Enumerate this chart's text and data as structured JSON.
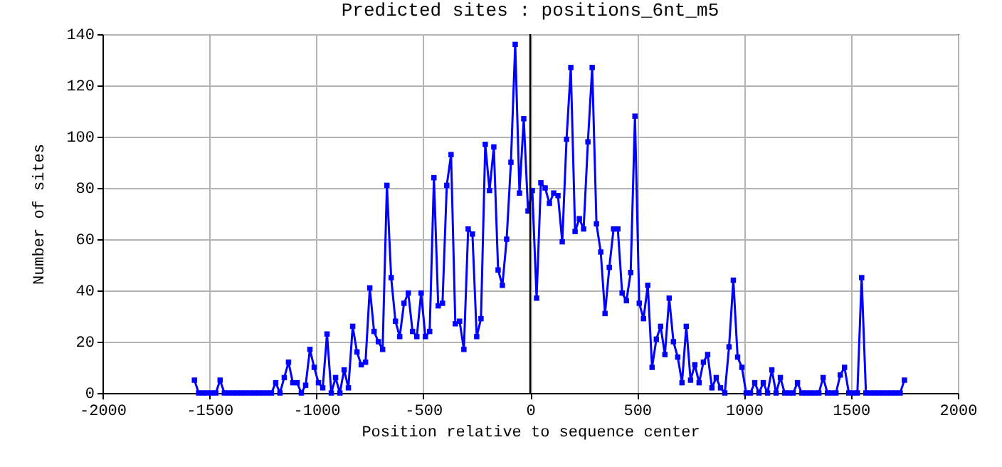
{
  "chart_data": {
    "type": "line",
    "title": "Predicted sites : positions_6nt_m5",
    "xlabel": "Position relative to sequence center",
    "ylabel": "Number of sites",
    "x": [
      -1570,
      -1550,
      -1530,
      -1510,
      -1490,
      -1470,
      -1450,
      -1430,
      -1410,
      -1390,
      -1370,
      -1350,
      -1330,
      -1310,
      -1290,
      -1270,
      -1250,
      -1230,
      -1210,
      -1190,
      -1170,
      -1150,
      -1130,
      -1110,
      -1090,
      -1070,
      -1050,
      -1030,
      -1010,
      -990,
      -970,
      -950,
      -930,
      -910,
      -890,
      -870,
      -850,
      -830,
      -810,
      -790,
      -770,
      -750,
      -730,
      -710,
      -690,
      -670,
      -650,
      -630,
      -610,
      -590,
      -570,
      -550,
      -530,
      -510,
      -490,
      -470,
      -450,
      -430,
      -410,
      -390,
      -370,
      -350,
      -330,
      -310,
      -290,
      -270,
      -250,
      -230,
      -210,
      -190,
      -170,
      -150,
      -130,
      -110,
      -90,
      -70,
      -50,
      -30,
      -10,
      10,
      30,
      50,
      70,
      90,
      110,
      130,
      150,
      170,
      190,
      210,
      230,
      250,
      270,
      290,
      310,
      330,
      350,
      370,
      390,
      410,
      430,
      450,
      470,
      490,
      510,
      530,
      550,
      570,
      590,
      610,
      630,
      650,
      670,
      690,
      710,
      730,
      750,
      770,
      790,
      810,
      830,
      850,
      870,
      890,
      910,
      930,
      950,
      970,
      990,
      1010,
      1030,
      1050,
      1070,
      1090,
      1110,
      1130,
      1150,
      1170,
      1190,
      1210,
      1230,
      1250,
      1270,
      1290,
      1310,
      1330,
      1350,
      1370,
      1390,
      1410,
      1430,
      1450,
      1470,
      1490,
      1510,
      1530,
      1550,
      1570,
      1590,
      1610,
      1630,
      1650,
      1670,
      1690,
      1710,
      1730,
      1750
    ],
    "series": [
      {
        "color": "#0000ff",
        "values": [
          5,
          0,
          0,
          0,
          0,
          0,
          5,
          0,
          0,
          0,
          0,
          0,
          0,
          0,
          0,
          0,
          0,
          0,
          0,
          4,
          0,
          6,
          12,
          4,
          4,
          0,
          3,
          17,
          10,
          4,
          2,
          23,
          0,
          6,
          0,
          9,
          2,
          26,
          16,
          11,
          12,
          41,
          24,
          20,
          17,
          81,
          45,
          28,
          22,
          35,
          39,
          24,
          22,
          39,
          22,
          24,
          84,
          34,
          35,
          81,
          93,
          27,
          28,
          17,
          64,
          62,
          22,
          29,
          97,
          79,
          96,
          48,
          42,
          60,
          90,
          136,
          78,
          107,
          71,
          79,
          37,
          82,
          80,
          74,
          78,
          77,
          59,
          99,
          127,
          63,
          68,
          64,
          98,
          127,
          66,
          55,
          31,
          49,
          64,
          64,
          39,
          36,
          47,
          108,
          35,
          29,
          42,
          10,
          21,
          26,
          15,
          37,
          20,
          14,
          4,
          26,
          5,
          11,
          4,
          12,
          15,
          2,
          6,
          2,
          0,
          18,
          44,
          14,
          10,
          0,
          0,
          4,
          0,
          4,
          0,
          9,
          0,
          6,
          0,
          0,
          0,
          4,
          0,
          0,
          0,
          0,
          0,
          6,
          0,
          0,
          0,
          7,
          10,
          0,
          0,
          0,
          45,
          0,
          0,
          0,
          0,
          0,
          0,
          0,
          0,
          0,
          5
        ]
      }
    ],
    "xlim": [
      -2000,
      2000
    ],
    "xticks": [
      -2000,
      -1500,
      -1000,
      -500,
      0,
      500,
      1000,
      1500,
      2000
    ],
    "ylim": [
      0,
      140
    ],
    "yticks": [
      0,
      20,
      40,
      60,
      80,
      100,
      120,
      140
    ],
    "grid": true,
    "marker": "square",
    "line_style": "solid",
    "ref_lines": [
      {
        "axis": "x",
        "value": 0,
        "color": "#000000"
      }
    ]
  }
}
